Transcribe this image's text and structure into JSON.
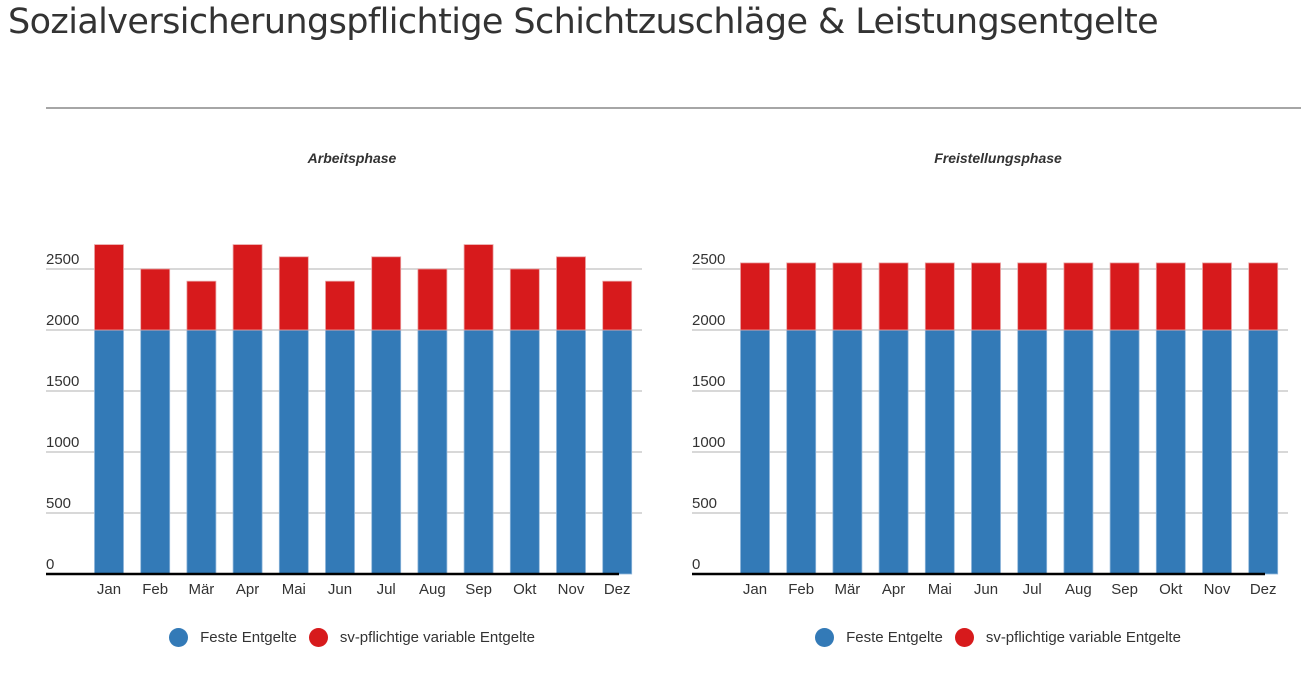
{
  "page": {
    "title": "Sozialversicherungspflichtige Schichtzuschläge & Leistungsentgelte"
  },
  "colors": {
    "fixed": "#337ab7",
    "variable": "#d71a1c",
    "grid": "#cccccc",
    "axis": "#000000",
    "divider": "#a6a6a6"
  },
  "chart_data": [
    {
      "type": "bar",
      "stacked": true,
      "title": "Arbeitsphase",
      "categories": [
        "Jan",
        "Feb",
        "Mär",
        "Apr",
        "Mai",
        "Jun",
        "Jul",
        "Aug",
        "Sep",
        "Okt",
        "Nov",
        "Dez"
      ],
      "series": [
        {
          "name": "Feste Entgelte",
          "color": "#337ab7",
          "values": [
            2000,
            2000,
            2000,
            2000,
            2000,
            2000,
            2000,
            2000,
            2000,
            2000,
            2000,
            2000
          ]
        },
        {
          "name": "sv-pflichtige variable Entgelte",
          "color": "#d71a1c",
          "values": [
            700,
            500,
            400,
            700,
            600,
            400,
            600,
            500,
            700,
            500,
            600,
            400
          ]
        }
      ],
      "yticks": [
        0,
        500,
        1000,
        1500,
        2000,
        2500
      ],
      "ylim": [
        0,
        2900
      ],
      "xlabel": "",
      "ylabel": "",
      "grid": true,
      "legend": "bottom"
    },
    {
      "type": "bar",
      "stacked": true,
      "title": "Freistellungsphase",
      "categories": [
        "Jan",
        "Feb",
        "Mär",
        "Apr",
        "Mai",
        "Jun",
        "Jul",
        "Aug",
        "Sep",
        "Okt",
        "Nov",
        "Dez"
      ],
      "series": [
        {
          "name": "Feste Entgelte",
          "color": "#337ab7",
          "values": [
            2000,
            2000,
            2000,
            2000,
            2000,
            2000,
            2000,
            2000,
            2000,
            2000,
            2000,
            2000
          ]
        },
        {
          "name": "sv-pflichtige variable Entgelte",
          "color": "#d71a1c",
          "values": [
            550,
            550,
            550,
            550,
            550,
            550,
            550,
            550,
            550,
            550,
            550,
            550
          ]
        }
      ],
      "yticks": [
        0,
        500,
        1000,
        1500,
        2000,
        2500
      ],
      "ylim": [
        0,
        2900
      ],
      "xlabel": "",
      "ylabel": "",
      "grid": true,
      "legend": "bottom"
    }
  ]
}
